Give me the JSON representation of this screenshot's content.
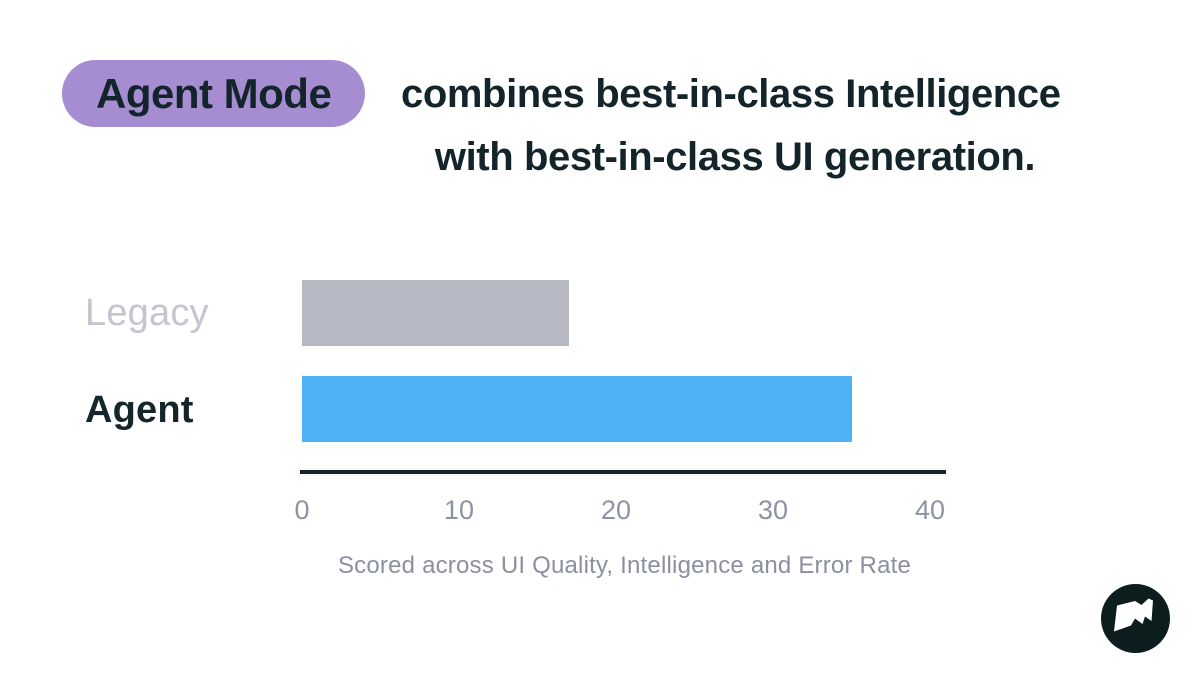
{
  "header": {
    "badge": "Agent Mode",
    "title_line1": "combines best-in-class Intelligence",
    "title_line2": "with best-in-class UI generation."
  },
  "chart_data": {
    "type": "bar",
    "orientation": "horizontal",
    "categories": [
      "Legacy",
      "Agent"
    ],
    "values": [
      17,
      35
    ],
    "xlim": [
      0,
      40
    ],
    "xticks": [
      "0",
      "10",
      "20",
      "30",
      "40"
    ],
    "xtick_values": [
      0,
      10,
      20,
      30,
      40
    ],
    "caption": "Scored across UI Quality, Intelligence and Error Rate",
    "bar_colors": [
      "#b6b9c3",
      "#4db3f4"
    ],
    "label_colors": [
      "#c3c5cf",
      "#15262b"
    ],
    "grid": false,
    "legend": "none",
    "title": "",
    "xlabel": "",
    "ylabel": ""
  },
  "colors": {
    "accent_purple": "#a68cd1",
    "text_dark": "#13252a",
    "axis": "#15262b",
    "tick_gray": "#8d93a3",
    "caption_gray": "#8b90a0",
    "background": "#ffffff",
    "logo_bg": "#0b1d1c",
    "logo_fg": "#ffffff"
  },
  "branding": {
    "logo_name": "flag-logo"
  }
}
